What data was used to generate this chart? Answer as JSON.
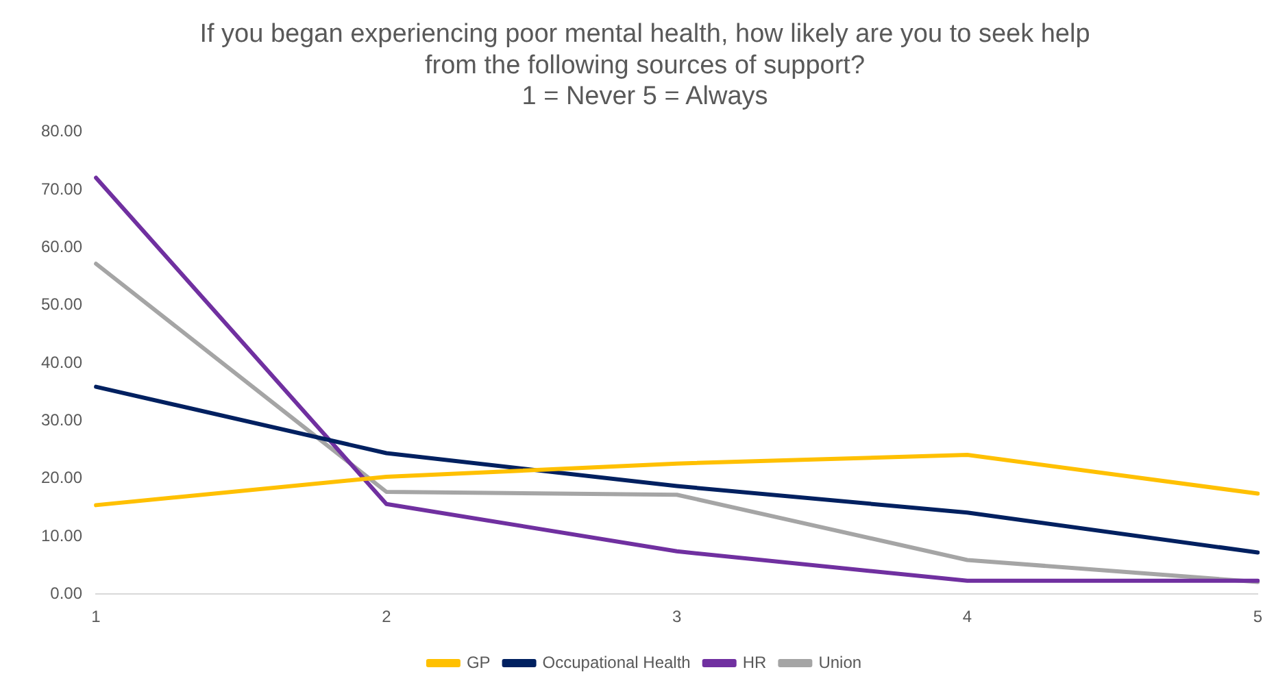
{
  "chart_data": {
    "type": "line",
    "title": "If you began experiencing poor mental health, how likely are you to seek help\nfrom the following sources of support?\n1 = Never 5 = Always",
    "categories": [
      "1",
      "2",
      "3",
      "4",
      "5"
    ],
    "series": [
      {
        "name": "GP",
        "color": "#ffc000",
        "values": [
          15.4,
          20.3,
          22.6,
          24.1,
          17.4
        ]
      },
      {
        "name": "Occupational Health",
        "color": "#002060",
        "values": [
          35.9,
          24.4,
          18.7,
          14.1,
          7.2
        ]
      },
      {
        "name": "HR",
        "color": "#7030a0",
        "values": [
          72.1,
          15.6,
          7.4,
          2.3,
          2.3
        ]
      },
      {
        "name": "Union",
        "color": "#a5a5a5",
        "values": [
          57.2,
          17.7,
          17.2,
          5.9,
          2.1
        ]
      }
    ],
    "ylim": [
      0,
      80
    ],
    "yticks": [
      {
        "value": 0,
        "label": "0.00"
      },
      {
        "value": 10,
        "label": "10.00"
      },
      {
        "value": 20,
        "label": "20.00"
      },
      {
        "value": 30,
        "label": "30.00"
      },
      {
        "value": 40,
        "label": "40.00"
      },
      {
        "value": 50,
        "label": "50.00"
      },
      {
        "value": 60,
        "label": "60.00"
      },
      {
        "value": 70,
        "label": "70.00"
      },
      {
        "value": 80,
        "label": "80.00"
      }
    ],
    "grid": false,
    "legend": "bottom",
    "marker": "none",
    "line_style": "solid"
  }
}
